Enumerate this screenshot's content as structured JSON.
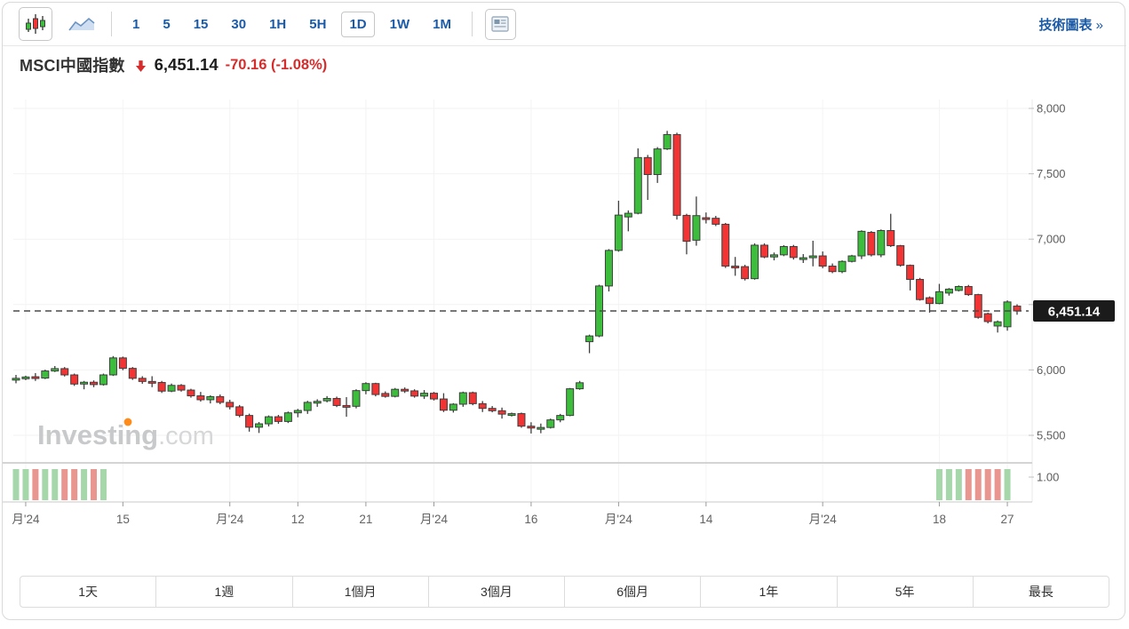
{
  "toolbar": {
    "chart_type": [
      {
        "name": "candlestick-chart",
        "selected": true
      },
      {
        "name": "line-chart",
        "selected": false
      }
    ],
    "intervals": [
      "1",
      "5",
      "15",
      "30",
      "1H",
      "5H",
      "1D",
      "1W",
      "1M"
    ],
    "selected_interval": "1D",
    "news_button": "news-panel",
    "tech_chart_label": "技術圖表",
    "tech_chart_chevron": "»"
  },
  "header": {
    "title": "MSCI中國指數",
    "direction": "down",
    "price": "6,451.14",
    "change": "-70.16 (-1.08%)"
  },
  "watermark": {
    "brand": "Investing",
    "suffix": ".com"
  },
  "range_buttons": [
    "1天",
    "1週",
    "1個月",
    "3個月",
    "6個月",
    "1年",
    "5年",
    "最長"
  ],
  "chart_data": {
    "type": "candlestick",
    "title": "MSCI中國指數",
    "interval": "1D",
    "last_price": 6451.14,
    "last_price_label": "6,451.14",
    "y_axis": {
      "min": 5500,
      "max": 8000,
      "step": 500,
      "ticks": [
        {
          "value": 8000,
          "label": "8,000"
        },
        {
          "value": 7500,
          "label": "7,500"
        },
        {
          "value": 7000,
          "label": "7,000"
        },
        {
          "value": 6500,
          "label": "6,500"
        },
        {
          "value": 6000,
          "label": "6,000"
        },
        {
          "value": 5500,
          "label": "5,500"
        }
      ]
    },
    "volume_axis_label": "1.00",
    "x_ticks": [
      {
        "i": 1,
        "label": "月'24"
      },
      {
        "i": 11,
        "label": "15"
      },
      {
        "i": 22,
        "label": "月'24"
      },
      {
        "i": 29,
        "label": "12"
      },
      {
        "i": 36,
        "label": "21"
      },
      {
        "i": 43,
        "label": "月'24"
      },
      {
        "i": 53,
        "label": "16"
      },
      {
        "i": 62,
        "label": "月'24"
      },
      {
        "i": 71,
        "label": "14"
      },
      {
        "i": 83,
        "label": "月'24"
      },
      {
        "i": 95,
        "label": "18"
      },
      {
        "i": 102,
        "label": "27"
      }
    ],
    "candles": [
      [
        5930,
        5962,
        5898,
        5936
      ],
      [
        5936,
        5956,
        5922,
        5946
      ],
      [
        5948,
        5976,
        5916,
        5938
      ],
      [
        5938,
        6002,
        5930,
        5992
      ],
      [
        5992,
        6030,
        5984,
        6010
      ],
      [
        6010,
        6022,
        5950,
        5962
      ],
      [
        5962,
        5972,
        5878,
        5892
      ],
      [
        5892,
        5916,
        5852,
        5906
      ],
      [
        5906,
        5920,
        5868,
        5888
      ],
      [
        5888,
        5972,
        5880,
        5962
      ],
      [
        5962,
        6106,
        5954,
        6092
      ],
      [
        6092,
        6102,
        5998,
        6012
      ],
      [
        6012,
        6022,
        5924,
        5936
      ],
      [
        5936,
        5952,
        5894,
        5912
      ],
      [
        5912,
        5952,
        5868,
        5904
      ],
      [
        5904,
        5916,
        5824,
        5838
      ],
      [
        5838,
        5896,
        5830,
        5882
      ],
      [
        5882,
        5892,
        5834,
        5846
      ],
      [
        5846,
        5856,
        5788,
        5802
      ],
      [
        5802,
        5832,
        5758,
        5772
      ],
      [
        5772,
        5806,
        5744,
        5796
      ],
      [
        5796,
        5812,
        5738,
        5752
      ],
      [
        5752,
        5772,
        5698,
        5718
      ],
      [
        5718,
        5732,
        5638,
        5652
      ],
      [
        5652,
        5666,
        5528,
        5562
      ],
      [
        5562,
        5602,
        5518,
        5588
      ],
      [
        5588,
        5652,
        5568,
        5642
      ],
      [
        5642,
        5656,
        5588,
        5606
      ],
      [
        5606,
        5682,
        5594,
        5672
      ],
      [
        5672,
        5702,
        5638,
        5690
      ],
      [
        5690,
        5764,
        5664,
        5752
      ],
      [
        5752,
        5776,
        5718,
        5760
      ],
      [
        5764,
        5800,
        5752,
        5782
      ],
      [
        5782,
        5796,
        5716,
        5728
      ],
      [
        5728,
        5792,
        5642,
        5722
      ],
      [
        5722,
        5852,
        5706,
        5842
      ],
      [
        5842,
        5906,
        5814,
        5896
      ],
      [
        5896,
        5902,
        5798,
        5812
      ],
      [
        5820,
        5836,
        5788,
        5798
      ],
      [
        5798,
        5862,
        5790,
        5852
      ],
      [
        5852,
        5866,
        5824,
        5840
      ],
      [
        5840,
        5852,
        5788,
        5800
      ],
      [
        5800,
        5846,
        5778,
        5822
      ],
      [
        5822,
        5832,
        5766,
        5778
      ],
      [
        5778,
        5822,
        5678,
        5692
      ],
      [
        5692,
        5746,
        5674,
        5738
      ],
      [
        5738,
        5834,
        5718,
        5826
      ],
      [
        5826,
        5834,
        5730,
        5742
      ],
      [
        5742,
        5762,
        5678,
        5706
      ],
      [
        5706,
        5724,
        5676,
        5688
      ],
      [
        5688,
        5712,
        5628,
        5662
      ],
      [
        5662,
        5674,
        5644,
        5666
      ],
      [
        5666,
        5674,
        5558,
        5570
      ],
      [
        5570,
        5600,
        5514,
        5556
      ],
      [
        5556,
        5590,
        5516,
        5560
      ],
      [
        5560,
        5628,
        5552,
        5618
      ],
      [
        5618,
        5664,
        5600,
        5652
      ],
      [
        5652,
        5862,
        5646,
        5856
      ],
      [
        5856,
        5916,
        5848,
        5902
      ],
      [
        6216,
        6270,
        6128,
        6260
      ],
      [
        6260,
        6652,
        6250,
        6642
      ],
      [
        6642,
        6924,
        6600,
        6914
      ],
      [
        6914,
        7294,
        6904,
        7184
      ],
      [
        7170,
        7220,
        7060,
        7198
      ],
      [
        7198,
        7694,
        7190,
        7624
      ],
      [
        7624,
        7644,
        7300,
        7494
      ],
      [
        7494,
        7704,
        7430,
        7690
      ],
      [
        7690,
        7828,
        7682,
        7800
      ],
      [
        7800,
        7814,
        7150,
        7182
      ],
      [
        7182,
        7194,
        6884,
        6984
      ],
      [
        6992,
        7326,
        6950,
        7180
      ],
      [
        7164,
        7204,
        7120,
        7160
      ],
      [
        7160,
        7178,
        7100,
        7114
      ],
      [
        7114,
        7124,
        6780,
        6794
      ],
      [
        6794,
        6864,
        6720,
        6790
      ],
      [
        6790,
        6804,
        6684,
        6698
      ],
      [
        6698,
        6968,
        6690,
        6954
      ],
      [
        6954,
        6968,
        6854,
        6864
      ],
      [
        6864,
        6898,
        6838,
        6880
      ],
      [
        6880,
        6954,
        6870,
        6944
      ],
      [
        6944,
        6956,
        6844,
        6860
      ],
      [
        6848,
        6886,
        6818,
        6858
      ],
      [
        6858,
        6988,
        6792,
        6872
      ],
      [
        6872,
        6906,
        6778,
        6794
      ],
      [
        6794,
        6814,
        6740,
        6752
      ],
      [
        6752,
        6838,
        6740,
        6830
      ],
      [
        6830,
        6880,
        6822,
        6872
      ],
      [
        6872,
        7068,
        6848,
        7060
      ],
      [
        7052,
        7062,
        6868,
        6880
      ],
      [
        6880,
        7074,
        6862,
        7066
      ],
      [
        7066,
        7194,
        6940,
        6950
      ],
      [
        6950,
        6956,
        6790,
        6800
      ],
      [
        6800,
        6806,
        6608,
        6692
      ],
      [
        6692,
        6704,
        6530,
        6538
      ],
      [
        6552,
        6562,
        6438,
        6508
      ],
      [
        6508,
        6658,
        6502,
        6598
      ],
      [
        6588,
        6626,
        6568,
        6618
      ],
      [
        6608,
        6646,
        6600,
        6638
      ],
      [
        6638,
        6650,
        6566,
        6576
      ],
      [
        6576,
        6582,
        6392,
        6402
      ],
      [
        6430,
        6438,
        6356,
        6370
      ],
      [
        6336,
        6378,
        6286,
        6368
      ],
      [
        6330,
        6532,
        6300,
        6520
      ],
      [
        6488,
        6502,
        6422,
        6451.14
      ]
    ],
    "volume_bars": [
      {
        "i": 0,
        "dir": "up"
      },
      {
        "i": 1,
        "dir": "up"
      },
      {
        "i": 2,
        "dir": "down"
      },
      {
        "i": 3,
        "dir": "up"
      },
      {
        "i": 4,
        "dir": "up"
      },
      {
        "i": 5,
        "dir": "down"
      },
      {
        "i": 6,
        "dir": "down"
      },
      {
        "i": 7,
        "dir": "up"
      },
      {
        "i": 8,
        "dir": "down"
      },
      {
        "i": 9,
        "dir": "up"
      },
      {
        "i": 95,
        "dir": "up"
      },
      {
        "i": 96,
        "dir": "up"
      },
      {
        "i": 97,
        "dir": "up"
      },
      {
        "i": 98,
        "dir": "down"
      },
      {
        "i": 99,
        "dir": "down"
      },
      {
        "i": 100,
        "dir": "down"
      },
      {
        "i": 101,
        "dir": "down"
      },
      {
        "i": 102,
        "dir": "up"
      }
    ],
    "colors": {
      "up": "#3cbd3c",
      "down": "#f23434",
      "candle_border": "#3e3e3e",
      "wick": "#3e3e3e",
      "vol_up": "#a6d7ab",
      "vol_down": "#e8968f",
      "grid": "#f2f2f2",
      "axis_line": "#c9c9c9",
      "axis_text": "#5c5c5c",
      "dashed_line": "#4a4a4a",
      "tag_bg": "#1b1b1b",
      "tag_text": "#ffffff",
      "watermark": "#c8c9cb",
      "watermark_suffix": "#d6d7d9",
      "watermark_dot": "#ff8c1a",
      "accent_blue": "#1b5aa6",
      "change_red": "#d62c2c"
    },
    "legend_position": "none",
    "grid_on": true
  }
}
